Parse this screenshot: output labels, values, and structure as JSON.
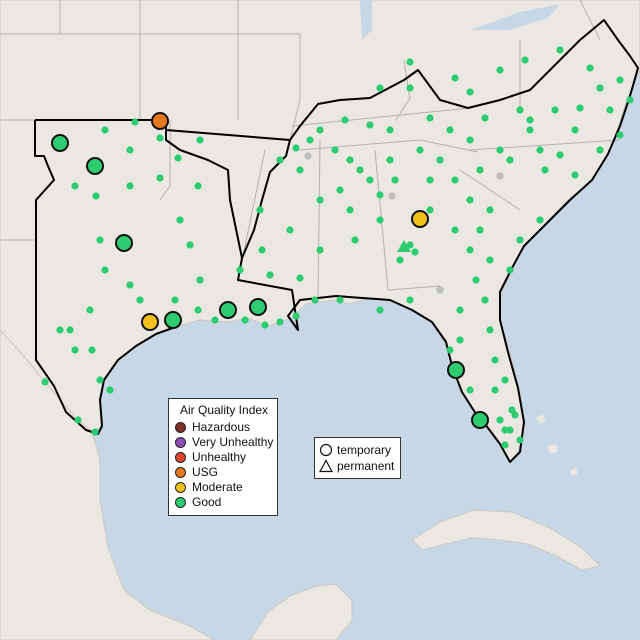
{
  "legend": {
    "title": "Air Quality Index",
    "items": [
      {
        "label": "Hazardous",
        "color": "#7e2f26"
      },
      {
        "label": "Very Unhealthy",
        "color": "#8f4fb0"
      },
      {
        "label": "Unhealthy",
        "color": "#e0442f"
      },
      {
        "label": "USG",
        "color": "#e6771c"
      },
      {
        "label": "Moderate",
        "color": "#f2c01a"
      },
      {
        "label": "Good",
        "color": "#2ecc71"
      }
    ]
  },
  "station_types": {
    "temporary": "temporary",
    "permanent": "permanent"
  },
  "colors": {
    "water": "#c7d7e6",
    "land": "#ebe7e2",
    "region_outline": "#000000",
    "state_border": "#b5b2ae",
    "good": "#2ecc71",
    "moderate": "#f2c01a",
    "usg": "#e6771c",
    "inactive": "#bdbdbd"
  },
  "stations": {
    "large_monitors": [
      {
        "aqi": "USG",
        "type": "temporary"
      },
      {
        "aqi": "Good",
        "type": "temporary"
      },
      {
        "aqi": "Good",
        "type": "temporary"
      },
      {
        "aqi": "Good",
        "type": "temporary"
      },
      {
        "aqi": "Moderate",
        "type": "temporary"
      },
      {
        "aqi": "Good",
        "type": "temporary"
      },
      {
        "aqi": "Good",
        "type": "temporary"
      },
      {
        "aqi": "Good",
        "type": "temporary"
      },
      {
        "aqi": "Moderate",
        "type": "temporary"
      },
      {
        "aqi": "Good",
        "type": "temporary"
      },
      {
        "aqi": "Good",
        "type": "temporary"
      }
    ]
  }
}
